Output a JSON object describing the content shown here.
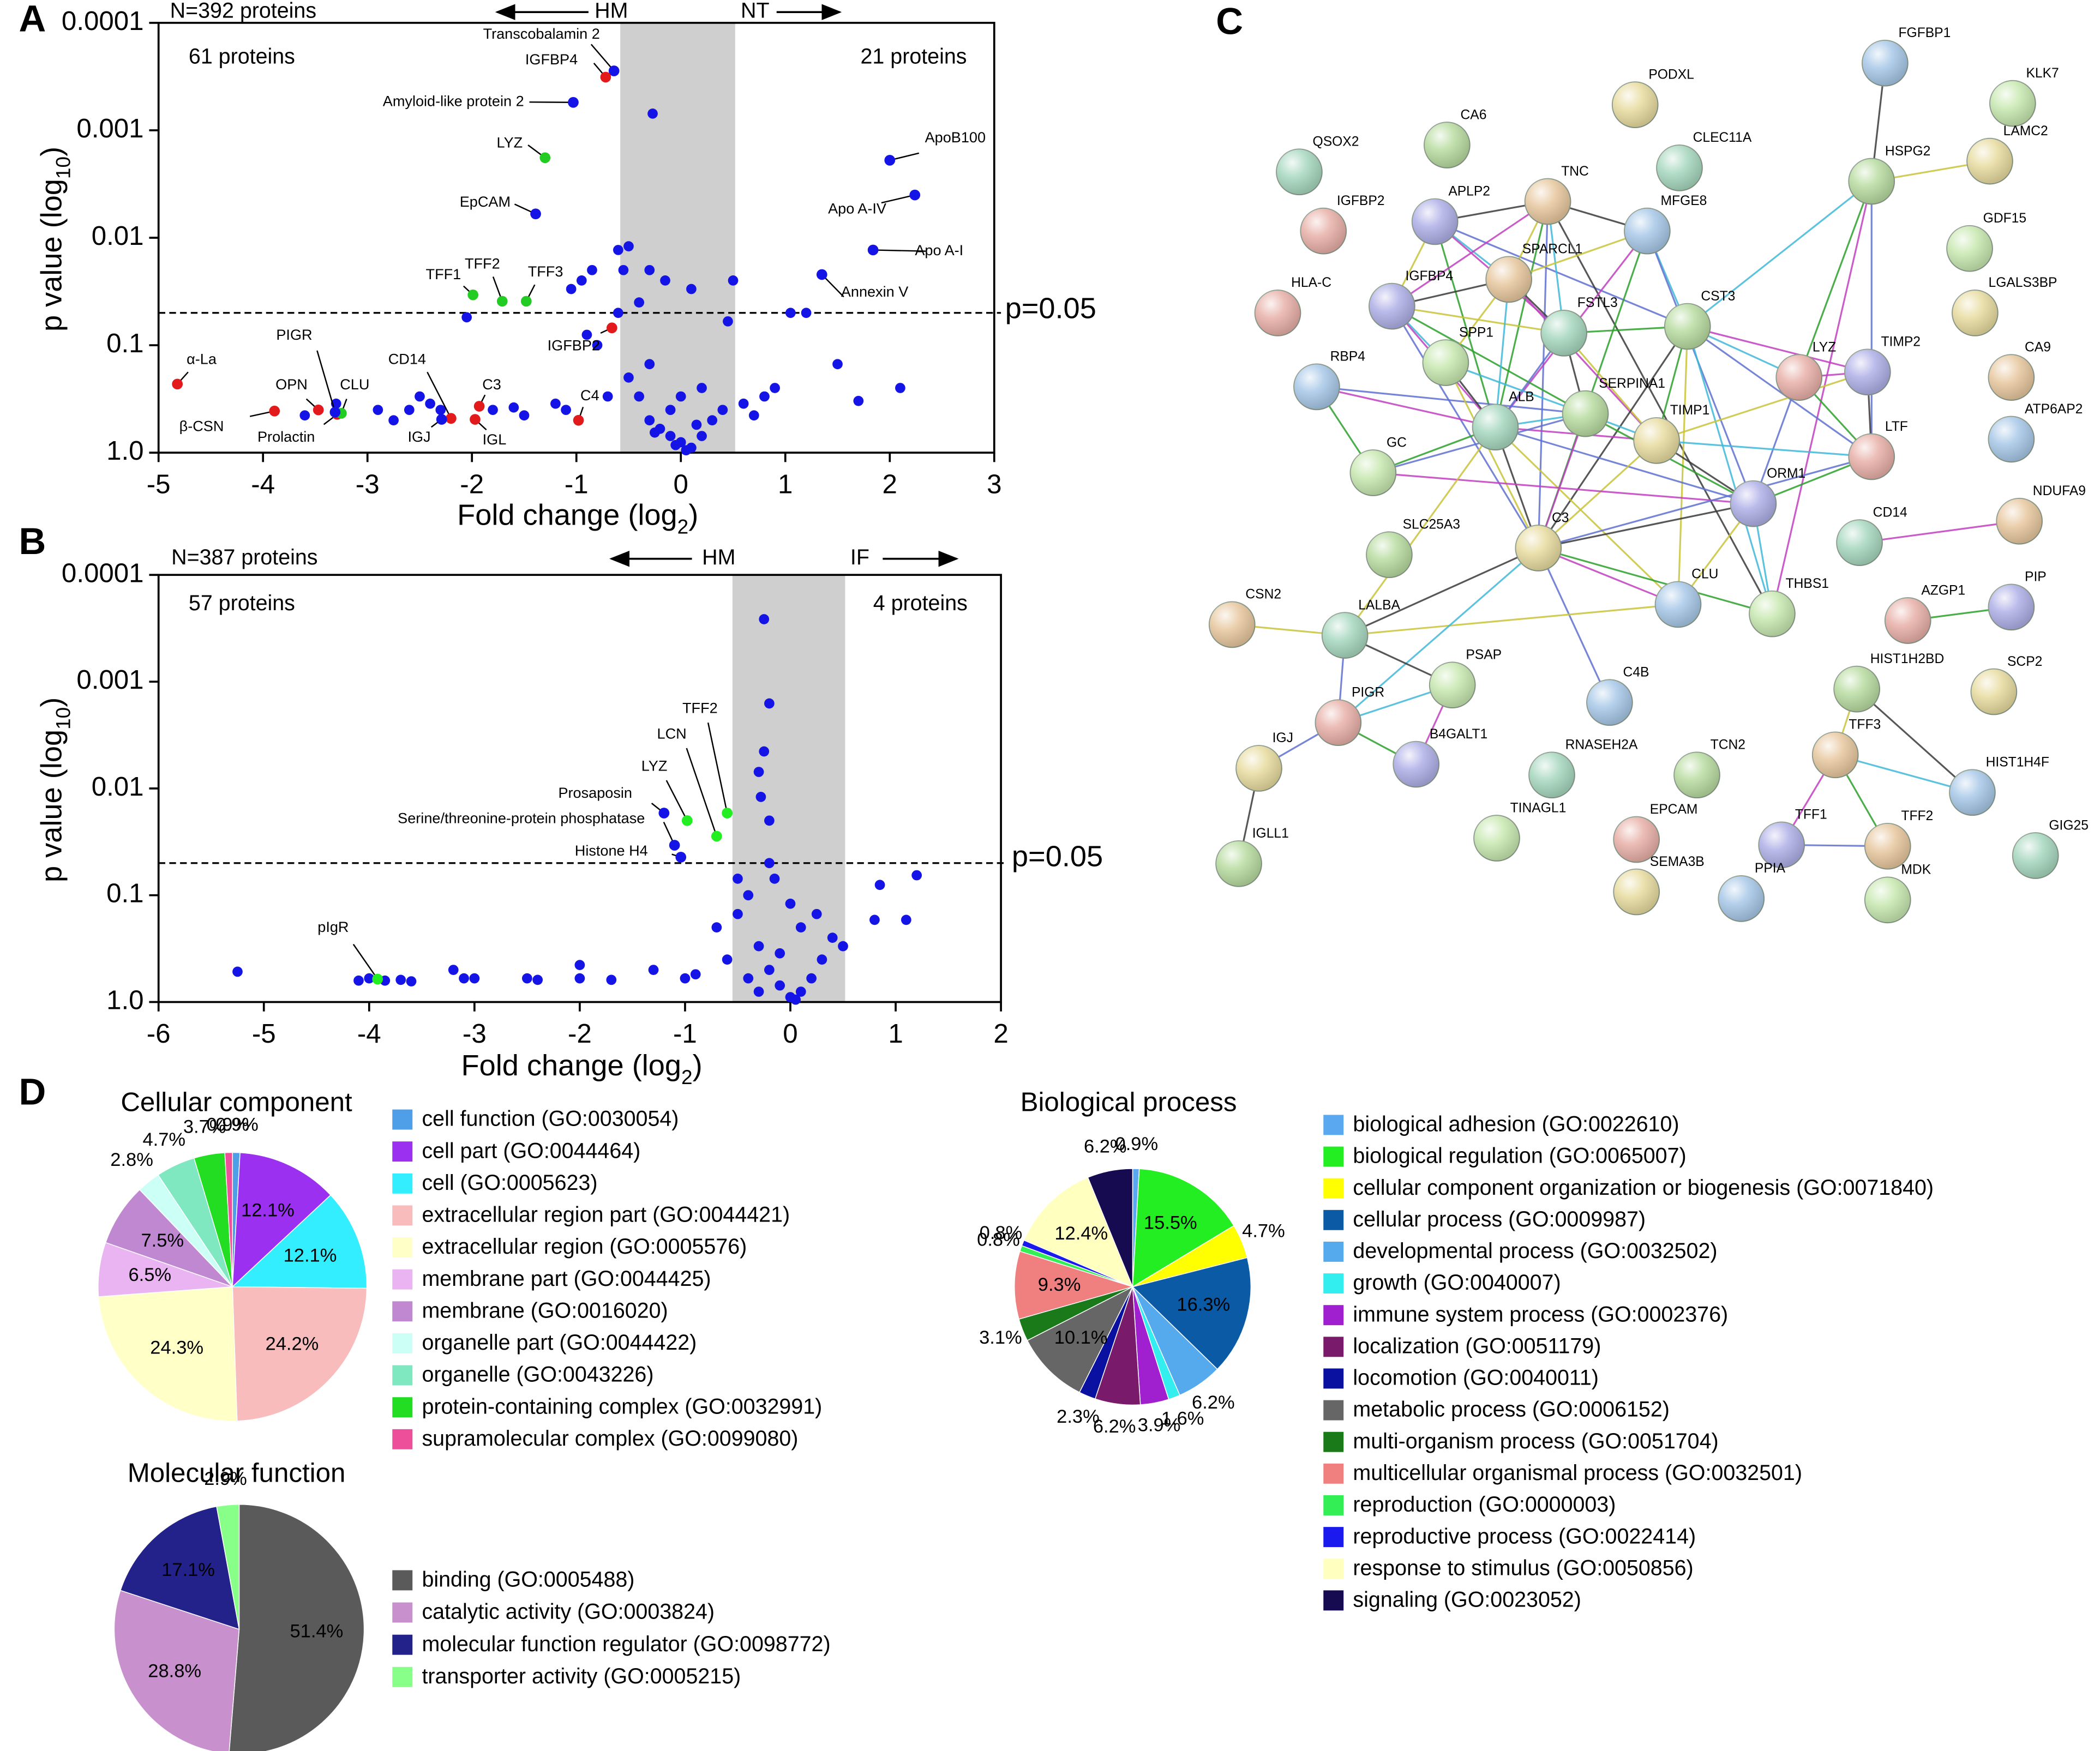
{
  "panel_labels": [
    "A",
    "B",
    "C",
    "D"
  ],
  "chart_data": [
    {
      "type": "volcano",
      "x_label": [
        "Fold change (log",
        "2",
        ")"
      ],
      "y_label": [
        "p value (log",
        "10",
        ")"
      ],
      "xlim": [
        -5,
        3
      ],
      "xticks": [
        -5,
        -4,
        -3,
        -2,
        -1,
        0,
        1,
        2,
        3
      ],
      "ylim": [
        1,
        0.0001
      ],
      "yticks": [
        {
          "value": 1,
          "label": "1.0"
        },
        0.1,
        0.01,
        0.001,
        0.0001
      ],
      "log_y": true,
      "threshold": {
        "value": 0.05,
        "label": "p=0.05"
      },
      "shade": [
        -0.58,
        0.52
      ],
      "count_label": "N=392 proteins",
      "direction_labels": [
        "HM",
        "NT"
      ],
      "region_labels": [
        "61 proteins",
        "21 proteins"
      ],
      "series": [
        {
          "color": "#1414e6",
          "x": [
            -0.27,
            -0.5,
            -0.55,
            -0.6,
            -0.85,
            -0.95,
            -1.05,
            -0.3,
            -0.15,
            0.1,
            0.5,
            -0.4,
            -0.6,
            -0.9,
            -0.8,
            -2.05,
            0.45,
            1.05,
            1.2,
            2.1,
            1.7,
            1.5,
            -2.9,
            -2.6,
            -2.5,
            -2.4,
            -2.3,
            -1.8,
            -1.6,
            -1.5,
            -1.2,
            -1.1,
            -0.4,
            -0.3,
            -0.2,
            -0.1,
            0,
            0.1,
            0.2,
            0.3,
            0.4,
            0.6,
            0.8,
            -0.5,
            -0.3,
            0,
            0.2,
            -0.1,
            0.05,
            -0.05,
            0.15,
            -0.25,
            0.7,
            0.9,
            -0.7,
            -3.3,
            -2.75,
            -3.6
          ],
          "values": [
            0.0007,
            0.012,
            0.02,
            0.013,
            0.02,
            0.025,
            0.03,
            0.02,
            0.025,
            0.03,
            0.025,
            0.04,
            0.05,
            0.08,
            0.1,
            0.055,
            0.06,
            0.05,
            0.05,
            0.25,
            0.33,
            0.15,
            0.4,
            0.4,
            0.3,
            0.35,
            0.4,
            0.4,
            0.38,
            0.45,
            0.35,
            0.4,
            0.3,
            0.5,
            0.6,
            0.7,
            0.8,
            0.9,
            0.7,
            0.5,
            0.4,
            0.35,
            0.3,
            0.2,
            0.15,
            0.3,
            0.25,
            0.4,
            0.95,
            0.85,
            0.55,
            0.65,
            0.45,
            0.25,
            0.3,
            0.35,
            0.5,
            0.45
          ]
        }
      ],
      "labeled_points": [
        {
          "label": "Transcobalamin 2",
          "x": -0.64,
          "y": 0.00028,
          "color": "#1414e6"
        },
        {
          "label": "IGFBP4",
          "x": -0.72,
          "y": 0.00032,
          "color": "#e31a1c"
        },
        {
          "label": "Amyloid-like protein 2",
          "x": -1.03,
          "y": 0.00055,
          "color": "#1414e6"
        },
        {
          "label": "LYZ",
          "x": -1.3,
          "y": 0.0018,
          "color": "#22cc22"
        },
        {
          "label": "EpCAM",
          "x": -1.39,
          "y": 0.006,
          "color": "#1414e6"
        },
        {
          "label": "TFF1",
          "x": -1.99,
          "y": 0.034,
          "color": "#22cc22"
        },
        {
          "label": "TFF2",
          "x": -1.71,
          "y": 0.039,
          "color": "#22cc22"
        },
        {
          "label": "TFF3",
          "x": -1.48,
          "y": 0.039,
          "color": "#22cc22"
        },
        {
          "label": "IGFBP2",
          "x": -0.66,
          "y": 0.069,
          "color": "#e31a1c"
        },
        {
          "label": "α-La",
          "x": -4.82,
          "y": 0.23,
          "color": "#e31a1c"
        },
        {
          "label": "OPN",
          "x": -3.47,
          "y": 0.4,
          "color": "#e31a1c"
        },
        {
          "label": "β-CSN",
          "x": -3.89,
          "y": 0.41,
          "color": "#e31a1c"
        },
        {
          "label": "Prolactin",
          "x": -3.29,
          "y": 0.44,
          "color": "#e31a1c"
        },
        {
          "label": "CLU",
          "x": -3.25,
          "y": 0.43,
          "color": "#22cc22"
        },
        {
          "label": "PIGR",
          "x": -3.31,
          "y": 0.42,
          "color": "#1414e6"
        },
        {
          "label": "CD14",
          "x": -2.2,
          "y": 0.48,
          "color": "#e31a1c"
        },
        {
          "label": "IGJ",
          "x": -2.29,
          "y": 0.49,
          "color": "#1414e6"
        },
        {
          "label": "C3",
          "x": -1.93,
          "y": 0.37,
          "color": "#e31a1c"
        },
        {
          "label": "IGL",
          "x": -1.97,
          "y": 0.49,
          "color": "#e31a1c"
        },
        {
          "label": "C4",
          "x": -0.98,
          "y": 0.5,
          "color": "#e31a1c"
        },
        {
          "label": "ApoB100",
          "x": 2.0,
          "y": 0.0019,
          "color": "#1414e6"
        },
        {
          "label": "Apo A-IV",
          "x": 2.24,
          "y": 0.004,
          "color": "#1414e6"
        },
        {
          "label": "Apo A-I",
          "x": 1.84,
          "y": 0.013,
          "color": "#1414e6"
        },
        {
          "label": "Annexin V",
          "x": 1.35,
          "y": 0.022,
          "color": "#1414e6"
        }
      ]
    },
    {
      "type": "volcano",
      "x_label": [
        "Fold change (log",
        "2",
        ")"
      ],
      "y_label": [
        "p value (log",
        "10",
        ")"
      ],
      "xlim": [
        -6,
        2
      ],
      "xticks": [
        -6,
        -5,
        -4,
        -3,
        -2,
        -1,
        0,
        1,
        2
      ],
      "ylim": [
        1,
        0.0001
      ],
      "yticks": [
        {
          "value": 1,
          "label": "1.0"
        },
        0.1,
        0.01,
        0.001,
        0.0001
      ],
      "log_y": true,
      "threshold": {
        "value": 0.05,
        "label": "p=0.05"
      },
      "shade": [
        -0.55,
        0.52
      ],
      "count_label": "N=387 proteins",
      "direction_labels": [
        "HM",
        "IF"
      ],
      "region_labels": [
        "57 proteins",
        "4 proteins"
      ],
      "series": [
        {
          "color": "#1414e6",
          "x": [
            -0.25,
            -0.2,
            -0.25,
            -0.3,
            -0.28,
            -0.2,
            1.2,
            0.85,
            0.8,
            1.1,
            -5.25,
            -4.1,
            -4.0,
            -3.85,
            -3.7,
            -3.6,
            -3.2,
            -3.1,
            -3.0,
            -2.5,
            -2.4,
            -2.0,
            -2.0,
            -1.7,
            -1.3,
            -1.0,
            -0.9,
            -0.7,
            -0.5,
            -0.5,
            -0.4,
            -0.3,
            -0.2,
            -0.1,
            0,
            0.1,
            0.2,
            0.3,
            0.4,
            0.5,
            -0.6,
            -0.4,
            -0.2,
            0,
            0.1,
            -0.1,
            0.05,
            -0.3,
            -0.15,
            0.25
          ],
          "values": [
            0.00026,
            0.0016,
            0.0045,
            0.007,
            0.012,
            0.02,
            0.065,
            0.08,
            0.17,
            0.17,
            0.52,
            0.63,
            0.6,
            0.63,
            0.62,
            0.64,
            0.5,
            0.6,
            0.6,
            0.6,
            0.62,
            0.45,
            0.6,
            0.62,
            0.5,
            0.6,
            0.55,
            0.2,
            0.07,
            0.15,
            0.1,
            0.3,
            0.5,
            0.7,
            0.9,
            0.8,
            0.6,
            0.4,
            0.25,
            0.3,
            0.4,
            0.6,
            0.05,
            0.12,
            0.2,
            0.35,
            0.95,
            0.8,
            0.07,
            0.15
          ]
        }
      ],
      "labeled_points": [
        {
          "label": "TFF2",
          "x": -0.6,
          "y": 0.017,
          "color": "#22ee22"
        },
        {
          "label": "LCN",
          "x": -0.7,
          "y": 0.028,
          "color": "#22ee22"
        },
        {
          "label": "LYZ",
          "x": -0.98,
          "y": 0.02,
          "color": "#22ee22"
        },
        {
          "label": "Prosaposin",
          "x": -1.2,
          "y": 0.017,
          "color": "#1414e6"
        },
        {
          "label": "Serine/threonine-protein phosphatase",
          "x": -1.1,
          "y": 0.034,
          "color": "#1414e6"
        },
        {
          "label": "Histone H4",
          "x": -1.04,
          "y": 0.044,
          "color": "#1414e6"
        },
        {
          "label": "pIgR",
          "x": -3.92,
          "y": 0.61,
          "color": "#22ee22"
        }
      ]
    },
    {
      "type": "pie",
      "title": "Cellular component",
      "categories": [
        "cell function (GO:0030054)",
        "cell part (GO:0044464)",
        "cell (GO:0005623)",
        "extracellular region part (GO:0044421)",
        "extracellular region (GO:0005576)",
        "membrane part (GO:0044425)",
        "membrane (GO:0016020)",
        "organelle part (GO:0044422)",
        "organelle (GO:0043226)",
        "protein-containing complex (GO:0032991)",
        "supramolecular complex (GO:0099080)"
      ],
      "values": [
        0.9,
        12.1,
        12.1,
        24.2,
        24.3,
        6.5,
        7.5,
        2.8,
        4.7,
        3.7,
        0.9
      ],
      "value_labels": [
        "0.9%",
        "12.1%",
        "12.1%",
        "24.2%",
        "24.3%",
        "6.5%",
        "7.5%",
        "2.8%",
        "4.7%",
        "3.7%",
        "0.9%"
      ],
      "colors": [
        "#4f9ee8",
        "#9b30f0",
        "#33eeff",
        "#f8bcbc",
        "#ffffc8",
        "#eab4f2",
        "#c088d0",
        "#ccfff5",
        "#7fe8c0",
        "#22dd22",
        "#ee4f9a"
      ]
    },
    {
      "type": "pie",
      "title": "Molecular function",
      "categories": [
        "binding (GO:0005488)",
        "catalytic activity (GO:0003824)",
        "molecular function regulator (GO:0098772)",
        "transporter activity (GO:0005215)"
      ],
      "values": [
        51.4,
        28.8,
        17.1,
        2.9
      ],
      "value_labels": [
        "51.4%",
        "28.8%",
        "17.1%",
        "2.9%"
      ],
      "colors": [
        "#5a5a5a",
        "#c890cc",
        "#22228a",
        "#88ff88"
      ]
    },
    {
      "type": "pie",
      "title": "Biological process",
      "categories": [
        "biological adhesion (GO:0022610)",
        "biological regulation (GO:0065007)",
        "cellular component organization or biogenesis (GO:0071840)",
        "cellular process (GO:0009987)",
        "developmental process (GO:0032502)",
        "growth (GO:0040007)",
        "immune system process (GO:0002376)",
        "localization (GO:0051179)",
        "locomotion (GO:0040011)",
        "metabolic process (GO:0006152)",
        "multi-organism process (GO:0051704)",
        "multicellular organismal process (GO:0032501)",
        "reproduction (GO:0000003)",
        "reproductive process (GO:0022414)",
        "response to stimulus (GO:0050856)",
        "signaling (GO:0023052)"
      ],
      "values": [
        0.9,
        15.5,
        4.7,
        16.3,
        6.2,
        1.6,
        3.9,
        6.2,
        2.3,
        10.1,
        3.1,
        9.3,
        0.8,
        0.8,
        12.4,
        6.2
      ],
      "value_labels": [
        "0.9%",
        "15.5%",
        "4.7%",
        "16.3%",
        "6.2%",
        "1.6%",
        "3.9%",
        "6.2%",
        "2.3%",
        "10.1%",
        "3.1%",
        "9.3%",
        "0.8%",
        "0.8%",
        "12.4%",
        "6.2%"
      ],
      "colors": [
        "#5aa9f0",
        "#22ee22",
        "#ffff00",
        "#0a5aa5",
        "#55aaee",
        "#33eeee",
        "#a020d0",
        "#7a1a6a",
        "#0a10a0",
        "#666666",
        "#1a7a1a",
        "#f08080",
        "#33ee55",
        "#1a1aee",
        "#ffffc0",
        "#160a50"
      ]
    }
  ],
  "network": {
    "nodes": [
      "QSOX2",
      "CA6",
      "PODXL",
      "FGFBP1",
      "KLK7",
      "IGFBP2",
      "APLP2",
      "TNC",
      "CLEC11A",
      "HSPG2",
      "LAMC2",
      "MFGE8",
      "GDF15",
      "HLA-C",
      "IGFBP4",
      "SPARCL1",
      "FSTL3",
      "CST3",
      "LGALS3BP",
      "RBP4",
      "SPP1",
      "LYZ",
      "TIMP2",
      "CA9",
      "ALB",
      "SERPINA1",
      "TIMP1",
      "ATP6AP2",
      "GC",
      "LTF",
      "ORM1",
      "NDUFA9",
      "CD14",
      "SLC25A3",
      "C3",
      "CLU",
      "THBS1",
      "AZGP1",
      "PIP",
      "CSN2",
      "LALBA",
      "HIST1H2BD",
      "SCP2",
      "C4B",
      "PSAP",
      "PIGR",
      "B4GALT1",
      "TFF3",
      "RNASEH2A",
      "TCN2",
      "IGJ",
      "HIST1H4F",
      "TINAGL1",
      "EPCAM",
      "TFF1",
      "TFF2",
      "GIG25",
      "IGLL1",
      "SEMA3B",
      "PPIA",
      "MDK"
    ],
    "edges": [
      [
        3,
        9
      ],
      [
        9,
        10
      ],
      [
        9,
        17
      ],
      [
        9,
        36
      ],
      [
        9,
        21
      ],
      [
        9,
        29
      ],
      [
        6,
        7
      ],
      [
        6,
        14
      ],
      [
        6,
        15
      ],
      [
        6,
        16
      ],
      [
        6,
        24
      ],
      [
        6,
        17
      ],
      [
        7,
        11
      ],
      [
        7,
        15
      ],
      [
        7,
        16
      ],
      [
        7,
        14
      ],
      [
        7,
        24
      ],
      [
        7,
        34
      ],
      [
        7,
        36
      ],
      [
        11,
        15
      ],
      [
        11,
        17
      ],
      [
        11,
        24
      ],
      [
        11,
        34
      ],
      [
        11,
        30
      ],
      [
        14,
        15
      ],
      [
        14,
        16
      ],
      [
        14,
        20
      ],
      [
        14,
        24
      ],
      [
        14,
        25
      ],
      [
        14,
        34
      ],
      [
        15,
        16
      ],
      [
        15,
        20
      ],
      [
        15,
        24
      ],
      [
        15,
        26
      ],
      [
        16,
        17
      ],
      [
        16,
        24
      ],
      [
        16,
        25
      ],
      [
        16,
        26
      ],
      [
        17,
        21
      ],
      [
        17,
        22
      ],
      [
        17,
        26
      ],
      [
        17,
        29
      ],
      [
        17,
        34
      ],
      [
        17,
        35
      ],
      [
        17,
        36
      ],
      [
        19,
        24
      ],
      [
        19,
        28
      ],
      [
        19,
        25
      ],
      [
        20,
        24
      ],
      [
        20,
        34
      ],
      [
        20,
        25
      ],
      [
        21,
        22
      ],
      [
        21,
        29
      ],
      [
        21,
        30
      ],
      [
        22,
        29
      ],
      [
        22,
        26
      ],
      [
        24,
        25
      ],
      [
        24,
        26
      ],
      [
        24,
        28
      ],
      [
        24,
        30
      ],
      [
        24,
        34
      ],
      [
        24,
        35
      ],
      [
        25,
        26
      ],
      [
        25,
        34
      ],
      [
        25,
        30
      ],
      [
        25,
        28
      ],
      [
        26,
        30
      ],
      [
        26,
        34
      ],
      [
        26,
        29
      ],
      [
        28,
        30
      ],
      [
        29,
        30
      ],
      [
        29,
        34
      ],
      [
        30,
        34
      ],
      [
        30,
        35
      ],
      [
        30,
        36
      ],
      [
        34,
        35
      ],
      [
        34,
        36
      ],
      [
        34,
        43
      ],
      [
        34,
        40
      ],
      [
        35,
        40
      ],
      [
        34,
        45
      ],
      [
        32,
        31
      ],
      [
        37,
        38
      ],
      [
        40,
        45
      ],
      [
        40,
        44
      ],
      [
        40,
        39
      ],
      [
        44,
        45
      ],
      [
        44,
        46
      ],
      [
        45,
        46
      ],
      [
        45,
        50
      ],
      [
        50,
        57
      ],
      [
        41,
        47
      ],
      [
        47,
        51
      ],
      [
        47,
        54
      ],
      [
        47,
        55
      ],
      [
        54,
        55
      ],
      [
        41,
        51
      ],
      [
        40,
        24
      ]
    ]
  }
}
